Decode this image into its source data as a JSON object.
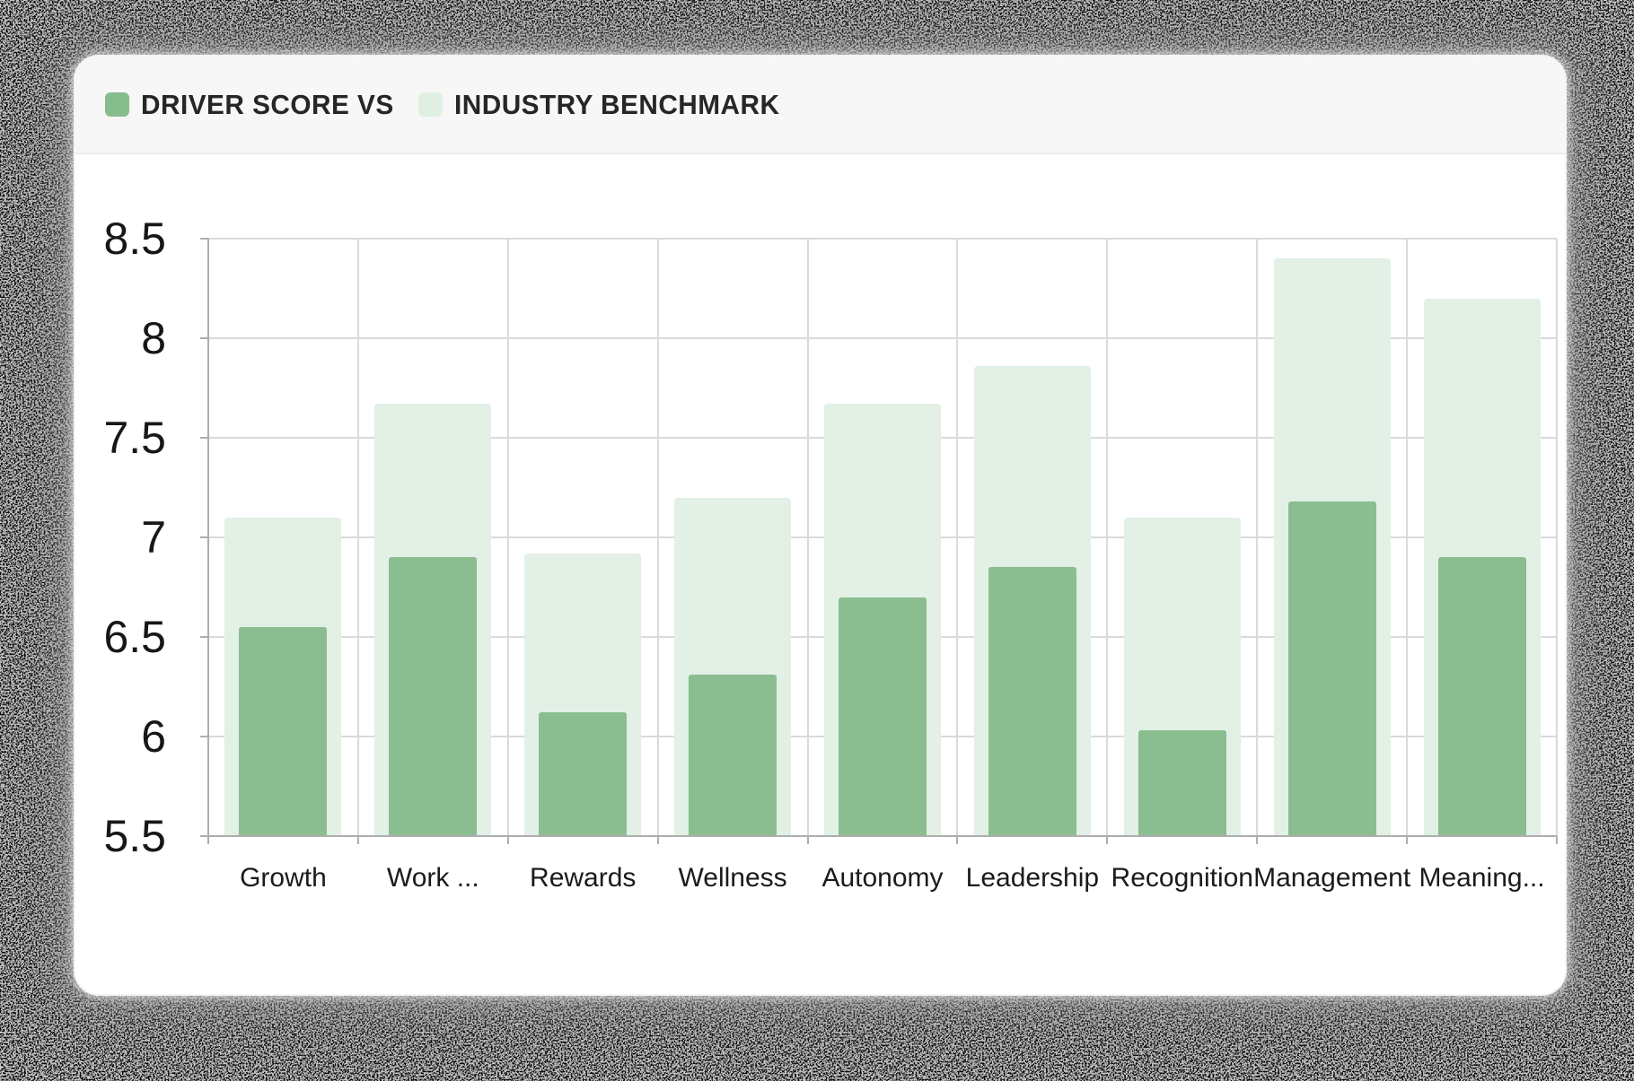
{
  "page": {
    "background_color": "#000000"
  },
  "card": {
    "header_background": "#f7f7f7",
    "background": "#ffffff"
  },
  "legend": {
    "items": [
      {
        "label": "DRIVER SCORE VS",
        "color": "#87BC8C"
      },
      {
        "label": "INDUSTRY BENCHMARK",
        "color": "#DFF0E3"
      }
    ]
  },
  "chart_data": {
    "type": "bar",
    "title": "Driver Score vs Industry Benchmark",
    "categories": [
      "Growth",
      "Work ...",
      "Rewards",
      "Wellness",
      "Autonomy",
      "Leadership",
      "Recognition",
      "Management",
      "Meaning..."
    ],
    "series": [
      {
        "name": "Industry Benchmark",
        "color": "#E2F0E5",
        "role": "background-bar",
        "values": [
          7.1,
          7.67,
          6.92,
          7.2,
          7.67,
          7.86,
          7.1,
          8.4,
          8.2
        ]
      },
      {
        "name": "Driver Score",
        "color": "#8ABD8F",
        "role": "foreground-bar",
        "values": [
          6.55,
          6.9,
          6.12,
          6.31,
          6.7,
          6.85,
          6.03,
          7.18,
          6.9
        ]
      }
    ],
    "xlabel": "",
    "ylabel": "",
    "ylim": [
      5.5,
      8.5
    ],
    "ytick_step": 0.5,
    "ytick_labels": [
      "8.5",
      "8",
      "7.5",
      "7",
      "6.5",
      "6",
      "5.5"
    ],
    "grid": true,
    "gridline_color": "#dadada",
    "axis_line_color": "#aeaeae",
    "legend_position": "top-left"
  }
}
